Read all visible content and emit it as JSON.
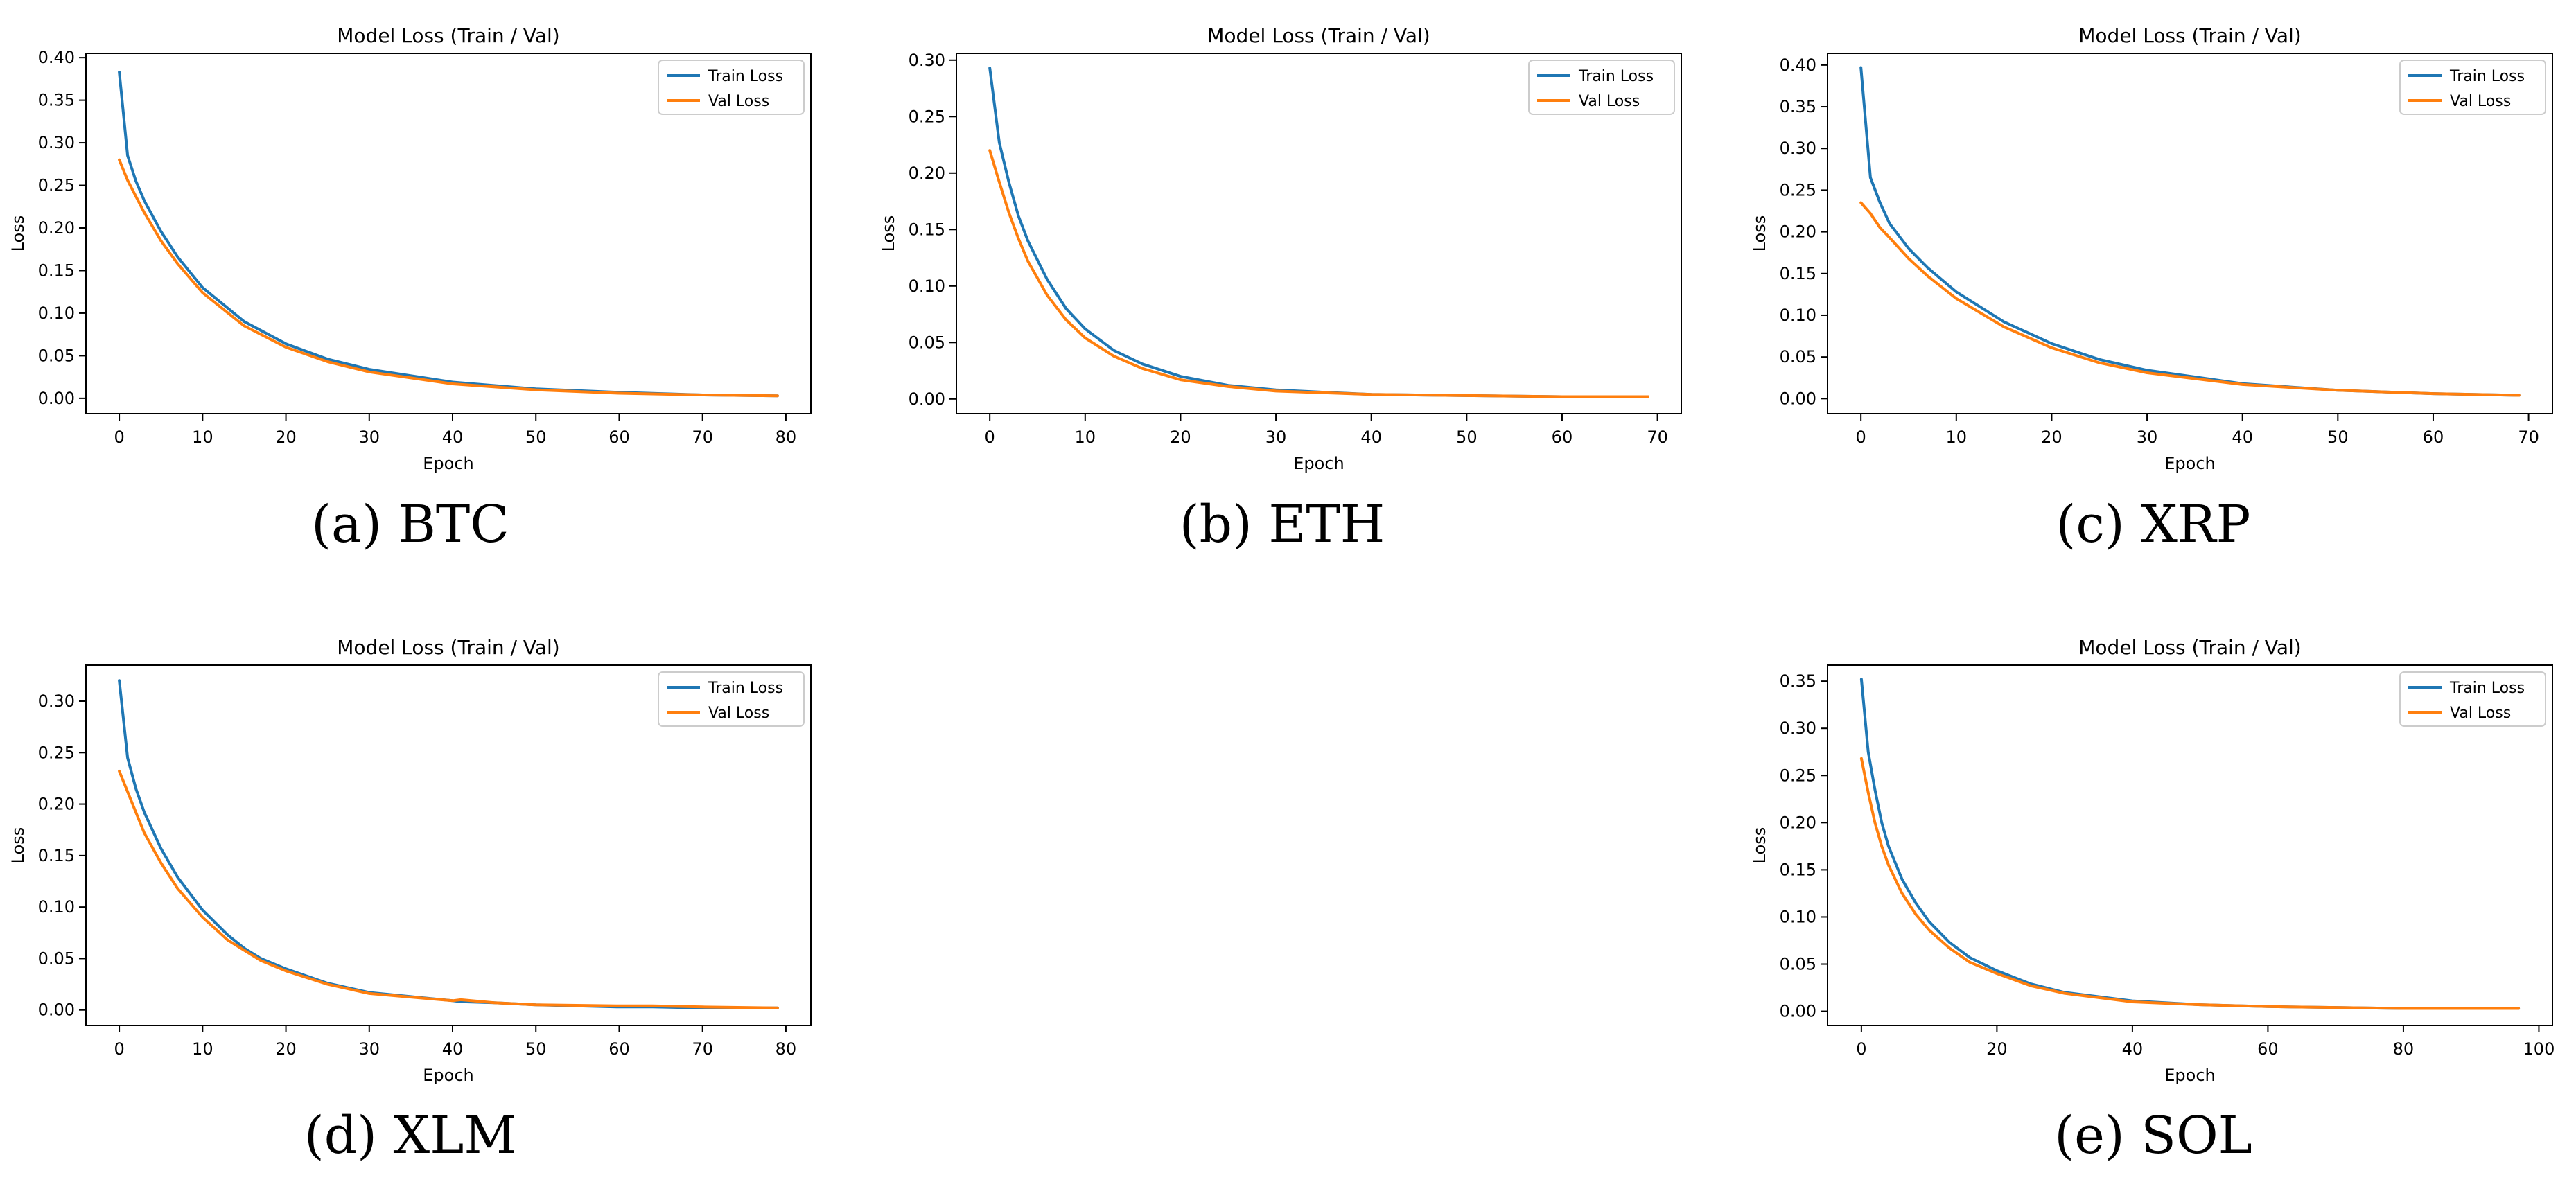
{
  "figure": {
    "captions": [
      "(a) BTC",
      "(b) ETH",
      "(c) XRP",
      "(d) XLM",
      "(e) SOL"
    ]
  },
  "colors": {
    "train": "#1f77b4",
    "val": "#ff7f0e"
  },
  "chart_data": [
    {
      "type": "line",
      "title": "Model Loss (Train / Val)",
      "xlabel": "Epoch",
      "ylabel": "Loss",
      "xlim": [
        -4,
        83
      ],
      "ylim": [
        -0.018,
        0.405
      ],
      "xticks": [
        0,
        10,
        20,
        30,
        40,
        50,
        60,
        70,
        80
      ],
      "yticks": [
        0.0,
        0.05,
        0.1,
        0.15,
        0.2,
        0.25,
        0.3,
        0.35,
        0.4
      ],
      "ytick_labels": [
        "0.00",
        "0.05",
        "0.10",
        "0.15",
        "0.20",
        "0.25",
        "0.30",
        "0.35",
        "0.40"
      ],
      "legend": "top-right",
      "grid": false,
      "x": [
        0,
        1,
        2,
        3,
        5,
        7,
        10,
        15,
        20,
        25,
        30,
        40,
        50,
        60,
        70,
        79
      ],
      "series": [
        {
          "name": "Train Loss",
          "values": [
            0.383,
            0.285,
            0.255,
            0.232,
            0.196,
            0.166,
            0.13,
            0.09,
            0.064,
            0.046,
            0.034,
            0.019,
            0.011,
            0.007,
            0.004,
            0.003
          ]
        },
        {
          "name": "Val Loss",
          "values": [
            0.28,
            0.256,
            0.237,
            0.218,
            0.185,
            0.158,
            0.124,
            0.085,
            0.06,
            0.043,
            0.031,
            0.017,
            0.01,
            0.006,
            0.004,
            0.003
          ]
        }
      ]
    },
    {
      "type": "line",
      "title": "Model Loss (Train / Val)",
      "xlabel": "Epoch",
      "ylabel": "Loss",
      "xlim": [
        -3.5,
        72.5
      ],
      "ylim": [
        -0.013,
        0.306
      ],
      "xticks": [
        0,
        10,
        20,
        30,
        40,
        50,
        60,
        70
      ],
      "yticks": [
        0.0,
        0.05,
        0.1,
        0.15,
        0.2,
        0.25,
        0.3
      ],
      "ytick_labels": [
        "0.00",
        "0.05",
        "0.10",
        "0.15",
        "0.20",
        "0.25",
        "0.30"
      ],
      "legend": "top-right",
      "grid": false,
      "x": [
        0,
        1,
        2,
        3,
        4,
        6,
        8,
        10,
        13,
        16,
        20,
        25,
        30,
        40,
        50,
        60,
        69
      ],
      "series": [
        {
          "name": "Train Loss",
          "values": [
            0.293,
            0.227,
            0.192,
            0.162,
            0.14,
            0.106,
            0.08,
            0.062,
            0.043,
            0.031,
            0.02,
            0.012,
            0.008,
            0.004,
            0.003,
            0.002,
            0.002
          ]
        },
        {
          "name": "Val Loss",
          "values": [
            0.22,
            0.192,
            0.165,
            0.142,
            0.122,
            0.092,
            0.07,
            0.054,
            0.038,
            0.027,
            0.017,
            0.011,
            0.007,
            0.004,
            0.003,
            0.002,
            0.002
          ]
        }
      ]
    },
    {
      "type": "line",
      "title": "Model Loss (Train / Val)",
      "xlabel": "Epoch",
      "ylabel": "Loss",
      "xlim": [
        -3.5,
        72.5
      ],
      "ylim": [
        -0.018,
        0.414
      ],
      "xticks": [
        0,
        10,
        20,
        30,
        40,
        50,
        60,
        70
      ],
      "yticks": [
        0.0,
        0.05,
        0.1,
        0.15,
        0.2,
        0.25,
        0.3,
        0.35,
        0.4
      ],
      "ytick_labels": [
        "0.00",
        "0.05",
        "0.10",
        "0.15",
        "0.20",
        "0.25",
        "0.30",
        "0.35",
        "0.40"
      ],
      "legend": "top-right",
      "grid": false,
      "x": [
        0,
        1,
        2,
        3,
        5,
        7,
        10,
        15,
        20,
        25,
        30,
        40,
        50,
        60,
        69
      ],
      "series": [
        {
          "name": "Train Loss",
          "values": [
            0.397,
            0.265,
            0.235,
            0.21,
            0.18,
            0.157,
            0.128,
            0.092,
            0.066,
            0.047,
            0.034,
            0.018,
            0.01,
            0.006,
            0.004
          ]
        },
        {
          "name": "Val Loss",
          "values": [
            0.235,
            0.222,
            0.205,
            0.193,
            0.168,
            0.147,
            0.12,
            0.086,
            0.061,
            0.043,
            0.031,
            0.017,
            0.01,
            0.006,
            0.004
          ]
        }
      ]
    },
    {
      "type": "line",
      "title": "Model Loss (Train / Val)",
      "xlabel": "Epoch",
      "ylabel": "Loss",
      "xlim": [
        -4,
        83
      ],
      "ylim": [
        -0.015,
        0.335
      ],
      "xticks": [
        0,
        10,
        20,
        30,
        40,
        50,
        60,
        70,
        80
      ],
      "yticks": [
        0.0,
        0.05,
        0.1,
        0.15,
        0.2,
        0.25,
        0.3
      ],
      "ytick_labels": [
        "0.00",
        "0.05",
        "0.10",
        "0.15",
        "0.20",
        "0.25",
        "0.30"
      ],
      "legend": "top-right",
      "grid": false,
      "x": [
        0,
        1,
        2,
        3,
        5,
        7,
        10,
        13,
        15,
        17,
        20,
        25,
        30,
        40,
        41,
        45,
        50,
        60,
        64,
        70,
        79
      ],
      "series": [
        {
          "name": "Train Loss",
          "values": [
            0.32,
            0.245,
            0.215,
            0.192,
            0.157,
            0.129,
            0.097,
            0.073,
            0.06,
            0.05,
            0.04,
            0.026,
            0.017,
            0.009,
            0.008,
            0.007,
            0.005,
            0.003,
            0.003,
            0.002,
            0.002
          ]
        },
        {
          "name": "Val Loss",
          "values": [
            0.232,
            0.212,
            0.192,
            0.172,
            0.143,
            0.118,
            0.09,
            0.068,
            0.058,
            0.048,
            0.038,
            0.025,
            0.016,
            0.009,
            0.01,
            0.007,
            0.005,
            0.004,
            0.004,
            0.003,
            0.002
          ]
        }
      ]
    },
    {
      "type": "line",
      "title": "Model Loss (Train / Val)",
      "xlabel": "Epoch",
      "ylabel": "Loss",
      "xlim": [
        -5,
        102
      ],
      "ylim": [
        -0.015,
        0.367
      ],
      "xticks": [
        0,
        20,
        40,
        60,
        80,
        100
      ],
      "yticks": [
        0.0,
        0.05,
        0.1,
        0.15,
        0.2,
        0.25,
        0.3,
        0.35
      ],
      "ytick_labels": [
        "0.00",
        "0.05",
        "0.10",
        "0.15",
        "0.20",
        "0.25",
        "0.30",
        "0.35"
      ],
      "legend": "top-right",
      "grid": false,
      "x": [
        0,
        1,
        2,
        3,
        4,
        6,
        8,
        10,
        13,
        16,
        20,
        25,
        30,
        40,
        50,
        60,
        70,
        80,
        90,
        97
      ],
      "series": [
        {
          "name": "Train Loss",
          "values": [
            0.352,
            0.275,
            0.235,
            0.2,
            0.175,
            0.14,
            0.115,
            0.095,
            0.073,
            0.057,
            0.043,
            0.029,
            0.02,
            0.011,
            0.007,
            0.005,
            0.004,
            0.003,
            0.003,
            0.003
          ]
        },
        {
          "name": "Val Loss",
          "values": [
            0.268,
            0.232,
            0.2,
            0.175,
            0.155,
            0.125,
            0.103,
            0.086,
            0.067,
            0.052,
            0.04,
            0.027,
            0.019,
            0.01,
            0.007,
            0.005,
            0.004,
            0.003,
            0.003,
            0.003
          ]
        }
      ]
    }
  ]
}
